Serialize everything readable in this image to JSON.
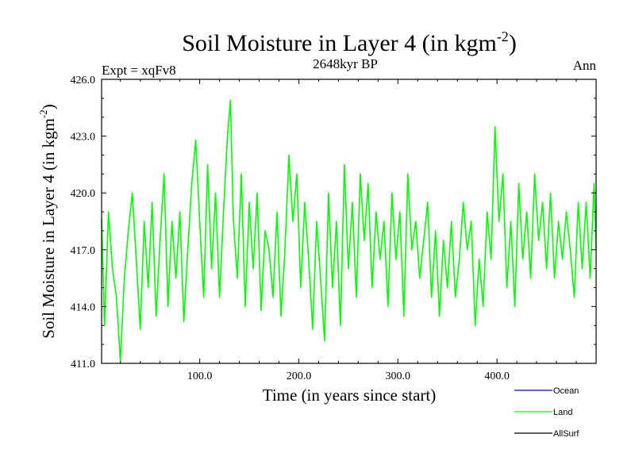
{
  "chart_data": {
    "type": "line",
    "title": "Soil Moisture in Layer 4 (in kgm",
    "title_sup": "-2",
    "title_close": ")",
    "subtitle_left": "Expt = xqFv8",
    "subtitle_center": "2648kyr BP",
    "subtitle_right": "Ann",
    "xlabel": "Time (in years since start)",
    "ylabel": "Soil Moisture in Layer 4 (in kgm",
    "ylabel_sup": "-2",
    "ylabel_close": ")",
    "xlim": [
      1,
      500
    ],
    "ylim": [
      411.0,
      426.0
    ],
    "x_ticks": [
      100,
      200,
      300,
      400
    ],
    "x_tick_labels": [
      "100.0",
      "200.0",
      "300.0",
      "400.0"
    ],
    "y_ticks": [
      411,
      414,
      417,
      420,
      423,
      426
    ],
    "y_tick_labels": [
      "411.0",
      "414.0",
      "417.0",
      "420.0",
      "423.0",
      "426.0"
    ],
    "legend": [
      {
        "name": "Ocean",
        "color": "#0000ff"
      },
      {
        "name": "Land",
        "color": "#00ff00"
      },
      {
        "name": "AllSurf",
        "color": "#000000"
      }
    ],
    "series": [
      {
        "name": "Land",
        "color": "#00ff00",
        "x": [
          1,
          4,
          8,
          12,
          16,
          20,
          24,
          28,
          32,
          36,
          40,
          44,
          48,
          52,
          56,
          60,
          64,
          68,
          72,
          76,
          80,
          84,
          88,
          92,
          96,
          100,
          104,
          108,
          112,
          116,
          120,
          124,
          128,
          131,
          134,
          138,
          142,
          146,
          150,
          154,
          158,
          162,
          166,
          170,
          174,
          178,
          182,
          186,
          190,
          194,
          198,
          202,
          206,
          210,
          214,
          218,
          222,
          226,
          230,
          234,
          238,
          242,
          246,
          250,
          254,
          258,
          262,
          266,
          270,
          274,
          278,
          282,
          286,
          290,
          294,
          298,
          302,
          306,
          310,
          314,
          318,
          322,
          326,
          330,
          334,
          338,
          342,
          346,
          350,
          354,
          358,
          362,
          366,
          370,
          374,
          378,
          382,
          386,
          390,
          394,
          398,
          402,
          406,
          410,
          414,
          418,
          422,
          426,
          430,
          434,
          438,
          442,
          446,
          450,
          454,
          458,
          462,
          466,
          470,
          474,
          478,
          482,
          486,
          490,
          494,
          498,
          500
        ],
        "values": [
          418.6,
          413.0,
          419.0,
          416.0,
          414.5,
          411.1,
          415.5,
          418.0,
          420.0,
          416.5,
          412.8,
          418.5,
          415.0,
          419.5,
          413.5,
          417.5,
          421.0,
          414.0,
          418.5,
          415.5,
          419.0,
          413.2,
          417.0,
          420.5,
          422.8,
          418.5,
          414.5,
          421.5,
          416.0,
          420.0,
          414.5,
          419.0,
          423.0,
          424.9,
          418.5,
          415.5,
          421.0,
          414.0,
          419.5,
          416.0,
          420.0,
          413.8,
          418.0,
          417.0,
          414.5,
          419.0,
          413.5,
          417.0,
          422.0,
          418.5,
          421.0,
          415.0,
          419.5,
          416.5,
          412.8,
          418.5,
          415.5,
          412.2,
          420.0,
          415.0,
          418.5,
          413.0,
          421.5,
          416.0,
          419.5,
          414.5,
          421.0,
          417.5,
          420.5,
          415.0,
          419.0,
          416.5,
          418.5,
          414.0,
          420.0,
          416.5,
          419.0,
          413.5,
          421.0,
          417.0,
          418.5,
          415.5,
          417.5,
          419.5,
          414.5,
          418.0,
          413.5,
          417.5,
          415.0,
          418.5,
          414.5,
          416.5,
          419.5,
          417.0,
          418.5,
          413.0,
          416.5,
          414.0,
          419.0,
          416.5,
          423.5,
          418.5,
          421.0,
          415.0,
          418.5,
          414.0,
          420.5,
          416.5,
          419.0,
          415.5,
          421.0,
          417.5,
          419.5,
          416.0,
          420.0,
          415.5,
          418.5,
          416.5,
          419.0,
          417.0,
          414.5,
          419.5,
          416.0,
          419.5,
          415.5,
          420.5,
          417.0
        ]
      }
    ]
  }
}
